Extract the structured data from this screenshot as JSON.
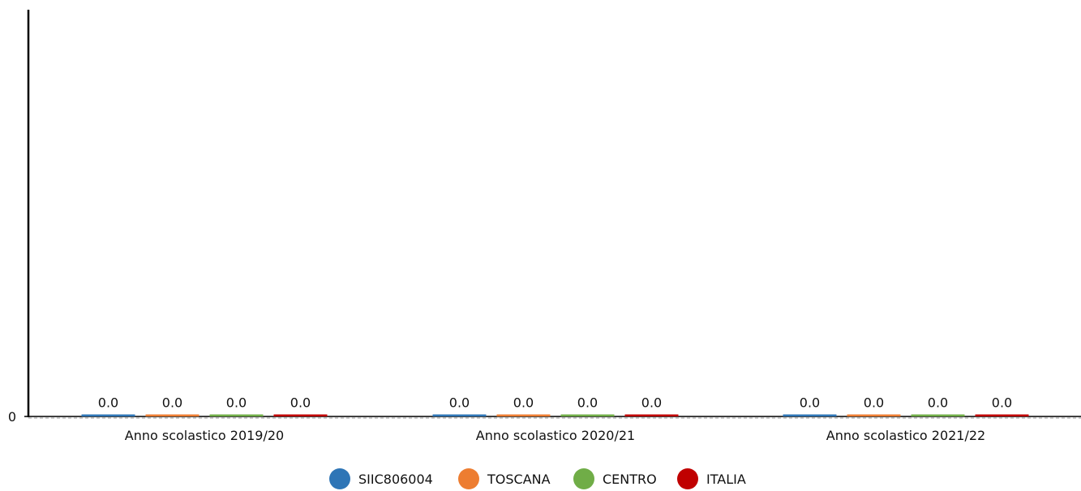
{
  "chart_data": {
    "type": "bar",
    "categories": [
      "Anno scolastico 2019/20",
      "Anno scolastico 2020/21",
      "Anno scolastico 2021/22"
    ],
    "series": [
      {
        "name": "SIIC806004",
        "values": [
          0.0,
          0.0,
          0.0
        ],
        "color": "#2e75b6"
      },
      {
        "name": "TOSCANA",
        "values": [
          0.0,
          0.0,
          0.0
        ],
        "color": "#ed7d31"
      },
      {
        "name": "CENTRO",
        "values": [
          0.0,
          0.0,
          0.0
        ],
        "color": "#70ad47"
      },
      {
        "name": "ITALIA",
        "values": [
          0.0,
          0.0,
          0.0
        ],
        "color": "#c00000"
      }
    ],
    "data_labels": [
      "0.0",
      "0.0",
      "0.0",
      "0.0",
      "0.0",
      "0.0",
      "0.0",
      "0.0",
      "0.0",
      "0.0",
      "0.0",
      "0.0"
    ],
    "y_tick_labels": [
      "0"
    ],
    "ylim": [
      0,
      1
    ],
    "grid": false,
    "legend_position": "bottom-center",
    "axis_color": "#000000",
    "zero_line_color": "#999999"
  }
}
